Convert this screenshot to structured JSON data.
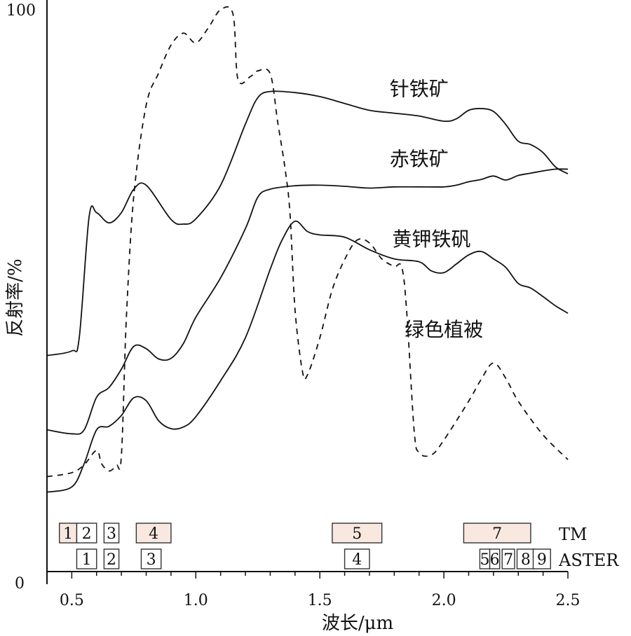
{
  "chart_data": {
    "type": "line",
    "xlabel": "波长/μm",
    "ylabel": "反射率/%",
    "xlim": [
      0.4,
      2.5
    ],
    "ylim": [
      0,
      100
    ],
    "xticks": [
      "0.5",
      "1.0",
      "1.5",
      "2.0",
      "2.5"
    ],
    "y_tick_labels": [
      "0",
      "100"
    ],
    "grid": false,
    "series": [
      {
        "name": "针铁矿",
        "style": "solid",
        "points": [
          [
            0.4,
            37.8
          ],
          [
            0.5,
            38.6
          ],
          [
            0.53,
            40.9
          ],
          [
            0.57,
            62.1
          ],
          [
            0.6,
            62.8
          ],
          [
            0.65,
            61.0
          ],
          [
            0.7,
            62.8
          ],
          [
            0.75,
            66.9
          ],
          [
            0.8,
            67.6
          ],
          [
            0.9,
            61.6
          ],
          [
            0.95,
            60.8
          ],
          [
            1.0,
            61.7
          ],
          [
            1.1,
            67.6
          ],
          [
            1.2,
            78.3
          ],
          [
            1.25,
            82.9
          ],
          [
            1.3,
            84.0
          ],
          [
            1.4,
            83.8
          ],
          [
            1.5,
            83.1
          ],
          [
            1.6,
            81.9
          ],
          [
            1.7,
            80.7
          ],
          [
            1.8,
            80.2
          ],
          [
            1.9,
            79.7
          ],
          [
            2.0,
            78.8
          ],
          [
            2.05,
            79.2
          ],
          [
            2.1,
            80.7
          ],
          [
            2.15,
            81.0
          ],
          [
            2.2,
            80.5
          ],
          [
            2.25,
            78.2
          ],
          [
            2.3,
            75.3
          ],
          [
            2.35,
            74.7
          ],
          [
            2.4,
            73.3
          ],
          [
            2.45,
            70.8
          ],
          [
            2.5,
            69.6
          ]
        ]
      },
      {
        "name": "赤铁矿",
        "style": "solid",
        "points": [
          [
            0.4,
            24.8
          ],
          [
            0.5,
            24.1
          ],
          [
            0.55,
            24.8
          ],
          [
            0.6,
            30.5
          ],
          [
            0.65,
            32.2
          ],
          [
            0.7,
            35.4
          ],
          [
            0.75,
            39.4
          ],
          [
            0.8,
            39.0
          ],
          [
            0.85,
            37.2
          ],
          [
            0.9,
            37.3
          ],
          [
            0.95,
            39.9
          ],
          [
            1.0,
            44.5
          ],
          [
            1.1,
            51.4
          ],
          [
            1.2,
            60.0
          ],
          [
            1.25,
            65.5
          ],
          [
            1.3,
            66.9
          ],
          [
            1.4,
            67.5
          ],
          [
            1.5,
            67.6
          ],
          [
            1.6,
            67.4
          ],
          [
            1.7,
            67.1
          ],
          [
            1.8,
            67.3
          ],
          [
            1.9,
            67.3
          ],
          [
            2.0,
            67.3
          ],
          [
            2.05,
            67.6
          ],
          [
            2.1,
            68.2
          ],
          [
            2.15,
            68.6
          ],
          [
            2.2,
            69.2
          ],
          [
            2.25,
            68.5
          ],
          [
            2.3,
            69.3
          ],
          [
            2.35,
            69.7
          ],
          [
            2.4,
            70.1
          ],
          [
            2.45,
            70.4
          ],
          [
            2.5,
            70.4
          ]
        ]
      },
      {
        "name": "黄钾铁矾",
        "style": "solid",
        "points": [
          [
            0.4,
            13.9
          ],
          [
            0.5,
            14.8
          ],
          [
            0.55,
            18.9
          ],
          [
            0.6,
            24.8
          ],
          [
            0.65,
            25.4
          ],
          [
            0.7,
            27.3
          ],
          [
            0.75,
            30.4
          ],
          [
            0.8,
            29.9
          ],
          [
            0.85,
            26.4
          ],
          [
            0.9,
            25.0
          ],
          [
            0.95,
            25.3
          ],
          [
            1.0,
            27.1
          ],
          [
            1.1,
            33.4
          ],
          [
            1.2,
            40.9
          ],
          [
            1.3,
            52.9
          ],
          [
            1.35,
            58.2
          ],
          [
            1.4,
            61.3
          ],
          [
            1.45,
            59.5
          ],
          [
            1.5,
            58.9
          ],
          [
            1.6,
            58.5
          ],
          [
            1.7,
            56.3
          ],
          [
            1.8,
            54.7
          ],
          [
            1.9,
            54.2
          ],
          [
            1.95,
            52.6
          ],
          [
            2.0,
            52.3
          ],
          [
            2.05,
            53.8
          ],
          [
            2.1,
            55.4
          ],
          [
            2.15,
            56.0
          ],
          [
            2.2,
            54.7
          ],
          [
            2.25,
            53.2
          ],
          [
            2.3,
            50.4
          ],
          [
            2.35,
            49.6
          ],
          [
            2.4,
            48.1
          ],
          [
            2.45,
            46.5
          ],
          [
            2.5,
            45.2
          ]
        ]
      },
      {
        "name": "绿色植被",
        "style": "dashed",
        "points": [
          [
            0.4,
            16.6
          ],
          [
            0.5,
            17.3
          ],
          [
            0.55,
            18.7
          ],
          [
            0.6,
            21.2
          ],
          [
            0.62,
            18.9
          ],
          [
            0.65,
            17.6
          ],
          [
            0.68,
            18.6
          ],
          [
            0.7,
            20.2
          ],
          [
            0.72,
            44.3
          ],
          [
            0.75,
            65.7
          ],
          [
            0.8,
            81.6
          ],
          [
            0.85,
            87.2
          ],
          [
            0.9,
            92.1
          ],
          [
            0.95,
            94.2
          ],
          [
            1.0,
            92.5
          ],
          [
            1.05,
            95.1
          ],
          [
            1.1,
            98.3
          ],
          [
            1.15,
            97.5
          ],
          [
            1.17,
            86.1
          ],
          [
            1.22,
            86.6
          ],
          [
            1.25,
            87.6
          ],
          [
            1.3,
            87.1
          ],
          [
            1.33,
            78.7
          ],
          [
            1.36,
            70.4
          ],
          [
            1.38,
            62.5
          ],
          [
            1.4,
            45.8
          ],
          [
            1.43,
            35.0
          ],
          [
            1.45,
            34.4
          ],
          [
            1.5,
            40.9
          ],
          [
            1.55,
            49.3
          ],
          [
            1.6,
            54.6
          ],
          [
            1.65,
            58.0
          ],
          [
            1.7,
            57.5
          ],
          [
            1.75,
            54.7
          ],
          [
            1.8,
            53.4
          ],
          [
            1.83,
            53.3
          ],
          [
            1.85,
            45.6
          ],
          [
            1.88,
            24.8
          ],
          [
            1.9,
            20.8
          ],
          [
            1.95,
            20.4
          ],
          [
            2.0,
            23.0
          ],
          [
            2.1,
            29.8
          ],
          [
            2.15,
            33.6
          ],
          [
            2.2,
            36.5
          ],
          [
            2.25,
            33.8
          ],
          [
            2.3,
            29.8
          ],
          [
            2.4,
            23.9
          ],
          [
            2.5,
            19.6
          ]
        ]
      }
    ],
    "curve_labels": [
      {
        "text": "针铁矿",
        "x": 1.9,
        "y": 83.3
      },
      {
        "text": "赤铁矿",
        "x": 1.9,
        "y": 71.0
      },
      {
        "text": "黄钾铁矾",
        "x": 1.95,
        "y": 57.0
      },
      {
        "text": "绿色植被",
        "x": 2.0,
        "y": 41.2
      }
    ],
    "bands": [
      {
        "sensor": "TM",
        "items": [
          {
            "label": "1",
            "range": [
              0.45,
              0.52
            ],
            "highlight": true
          },
          {
            "label": "2",
            "range": [
              0.52,
              0.6
            ],
            "highlight": false
          },
          {
            "label": "3",
            "range": [
              0.63,
              0.69
            ],
            "highlight": false
          },
          {
            "label": "4",
            "range": [
              0.76,
              0.9
            ],
            "highlight": true
          },
          {
            "label": "5",
            "range": [
              1.55,
              1.75
            ],
            "highlight": true
          },
          {
            "label": "7",
            "range": [
              2.08,
              2.35
            ],
            "highlight": true
          }
        ]
      },
      {
        "sensor": "ASTER",
        "items": [
          {
            "label": "1",
            "range": [
              0.52,
              0.6
            ]
          },
          {
            "label": "2",
            "range": [
              0.63,
              0.69
            ]
          },
          {
            "label": "3",
            "range": [
              0.78,
              0.86
            ]
          },
          {
            "label": "4",
            "range": [
              1.6,
              1.7
            ]
          },
          {
            "label": "5",
            "range": [
              2.145,
              2.185
            ]
          },
          {
            "label": "6",
            "range": [
              2.185,
              2.225
            ]
          },
          {
            "label": "7",
            "range": [
              2.235,
              2.285
            ]
          },
          {
            "label": "8",
            "range": [
              2.295,
              2.365
            ]
          },
          {
            "label": "9",
            "range": [
              2.36,
              2.43
            ]
          }
        ]
      }
    ],
    "colors": {
      "axis": "#111111",
      "line": "#111111",
      "band_fill": "#f8e8e0",
      "band_stroke": "#333333"
    }
  }
}
